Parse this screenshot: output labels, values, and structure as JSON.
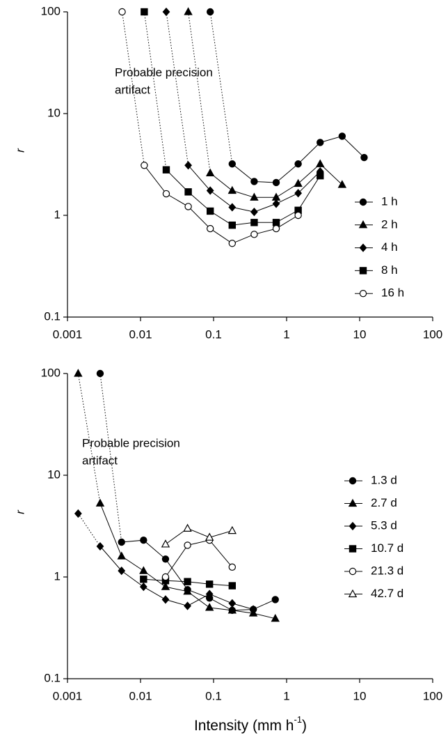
{
  "chart_data": [
    {
      "type": "line",
      "log_x": true,
      "log_y": true,
      "ylabel": "r",
      "xlim": [
        0.001,
        100
      ],
      "ylim": [
        0.1,
        100
      ],
      "xticks": [
        0.001,
        0.01,
        0.1,
        1,
        10,
        100
      ],
      "yticks": [
        0.1,
        1,
        10,
        100
      ],
      "legend": "center right",
      "annotation": [
        "Probable precision",
        "artifact"
      ],
      "series": [
        {
          "name": "1 h",
          "color": "#000000",
          "marker": "circle",
          "filled": true,
          "first_segment": "dotted",
          "x": [
            0.09,
            0.18,
            0.36,
            0.72,
            1.44,
            2.88,
            5.76,
            11.52
          ],
          "values": [
            100,
            3.2,
            2.15,
            2.1,
            3.2,
            5.2,
            6.0,
            3.7
          ]
        },
        {
          "name": "2 h",
          "color": "#000000",
          "marker": "triangle",
          "filled": true,
          "first_segment": "dotted",
          "x": [
            0.045,
            0.09,
            0.18,
            0.36,
            0.72,
            1.44,
            2.88,
            5.76
          ],
          "values": [
            100,
            2.6,
            1.75,
            1.5,
            1.5,
            2.05,
            3.2,
            2.0
          ]
        },
        {
          "name": "4 h",
          "color": "#000000",
          "marker": "diamond",
          "filled": true,
          "first_segment": "dotted",
          "x": [
            0.0225,
            0.045,
            0.09,
            0.18,
            0.36,
            0.72,
            1.44,
            2.88
          ],
          "values": [
            100,
            3.1,
            1.75,
            1.2,
            1.08,
            1.3,
            1.65,
            2.7
          ]
        },
        {
          "name": "8 h",
          "color": "#000000",
          "marker": "square",
          "filled": true,
          "first_segment": "dotted",
          "x": [
            0.01125,
            0.0225,
            0.045,
            0.09,
            0.18,
            0.36,
            0.72,
            1.44,
            2.88
          ],
          "values": [
            100,
            2.8,
            1.7,
            1.1,
            0.8,
            0.85,
            0.85,
            1.12,
            2.45
          ]
        },
        {
          "name": "16 h",
          "color": "#000000",
          "marker": "circle",
          "filled": false,
          "first_segment": "dotted",
          "x": [
            0.0056,
            0.01125,
            0.0225,
            0.045,
            0.09,
            0.18,
            0.36,
            0.72,
            1.44
          ],
          "values": [
            100,
            3.1,
            1.63,
            1.22,
            0.74,
            0.53,
            0.65,
            0.74,
            1.0
          ]
        }
      ]
    },
    {
      "type": "line",
      "log_x": true,
      "log_y": true,
      "ylabel": "r",
      "xlabel": {
        "text": "Intensity (mm h",
        "sup": "-1",
        "tail": ")"
      },
      "xlim": [
        0.001,
        100
      ],
      "ylim": [
        0.1,
        100
      ],
      "xticks": [
        0.001,
        0.01,
        0.1,
        1,
        10,
        100
      ],
      "yticks": [
        0.1,
        1,
        10,
        100
      ],
      "legend": "upper right",
      "annotation": [
        "Probable precision",
        "artifact"
      ],
      "series": [
        {
          "name": "1.3 d",
          "color": "#000000",
          "marker": "circle",
          "filled": true,
          "first_segment": "dotted",
          "x": [
            0.0028,
            0.0055,
            0.011,
            0.022,
            0.044,
            0.088,
            0.18,
            0.35,
            0.7
          ],
          "values": [
            100,
            2.2,
            2.3,
            1.5,
            0.75,
            0.62,
            0.47,
            0.48,
            0.6
          ]
        },
        {
          "name": "2.7 d",
          "color": "#000000",
          "marker": "triangle",
          "filled": true,
          "first_segment": "dotted",
          "x": [
            0.0014,
            0.0028,
            0.0055,
            0.011,
            0.022,
            0.044,
            0.088,
            0.18,
            0.35,
            0.7
          ],
          "values": [
            100,
            5.3,
            1.6,
            1.15,
            0.8,
            0.72,
            0.5,
            0.47,
            0.44,
            0.39
          ]
        },
        {
          "name": "5.3 d",
          "color": "#000000",
          "marker": "diamond",
          "filled": true,
          "first_segment": "dotted",
          "x": [
            0.0014,
            0.0028,
            0.0055,
            0.011,
            0.022,
            0.044,
            0.088,
            0.18,
            0.35
          ],
          "values": [
            4.2,
            2.0,
            1.15,
            0.8,
            0.6,
            0.52,
            0.68,
            0.55,
            0.48
          ]
        },
        {
          "name": "10.7 d",
          "color": "#000000",
          "marker": "square",
          "filled": true,
          "x": [
            0.011,
            0.022,
            0.044,
            0.088,
            0.18
          ],
          "values": [
            0.95,
            0.92,
            0.9,
            0.85,
            0.82
          ]
        },
        {
          "name": "21.3 d",
          "color": "#000000",
          "marker": "circle",
          "filled": false,
          "x": [
            0.022,
            0.044,
            0.088,
            0.18
          ],
          "values": [
            1.0,
            2.05,
            2.3,
            1.25
          ]
        },
        {
          "name": "42.7 d",
          "color": "#000000",
          "marker": "triangle",
          "filled": false,
          "x": [
            0.022,
            0.044,
            0.088,
            0.18
          ],
          "values": [
            2.1,
            3.0,
            2.45,
            2.85
          ]
        }
      ]
    }
  ]
}
